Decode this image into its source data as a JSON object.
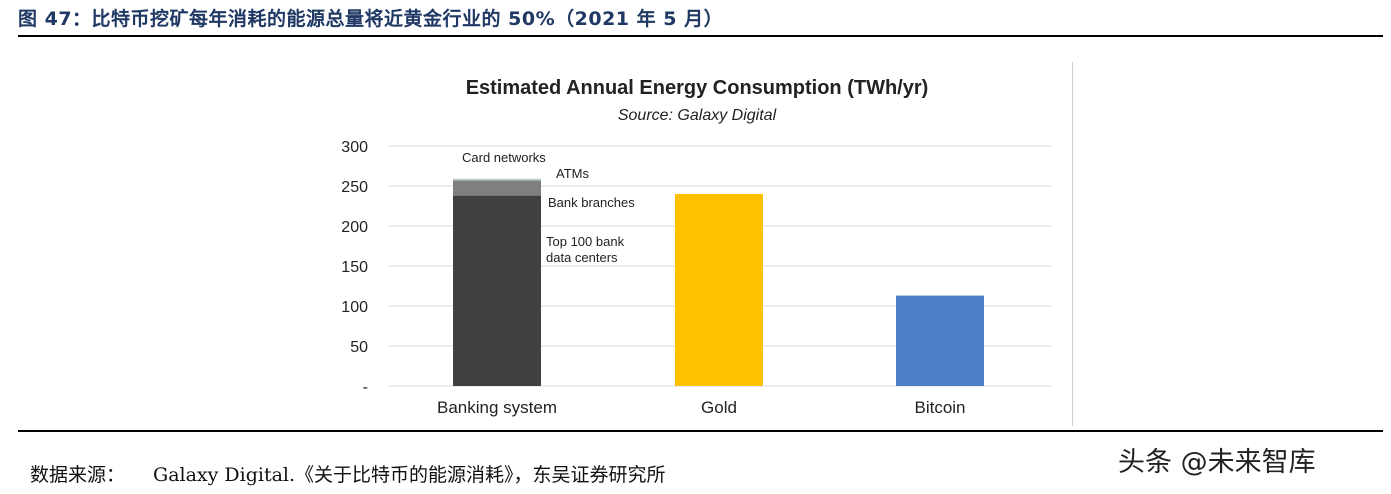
{
  "figure": {
    "title": "图 47：比特币挖矿每年消耗的能源总量将近黄金行业的 50%（2021 年 5 月）"
  },
  "footer": {
    "source_label": "数据来源：",
    "source_text": "Galaxy Digital.《关于比特币的能源消耗》，东吴证券研究所",
    "watermark": "头条 @未来智库"
  },
  "colors": {
    "title": "#1f3864",
    "top_100_bank_data_centers": "#404040",
    "bank_branches": "#7f7f7f",
    "atms": "#b8cfc8",
    "card_networks": "#e3f1ee",
    "gold": "#ffc000",
    "bitcoin": "#4a7ec7",
    "grid": "#d9d9d9"
  },
  "chart_data": {
    "type": "bar",
    "title": "Estimated Annual Energy Consumption (TWh/yr)",
    "subtitle": "Source: Galaxy Digital",
    "xlabel": "",
    "ylabel": "",
    "ylim": [
      0,
      300
    ],
    "yticks": [
      0,
      50,
      100,
      150,
      200,
      250,
      300
    ],
    "ytick_labels": [
      "-",
      "50",
      "100",
      "150",
      "200",
      "250",
      "300"
    ],
    "grid": true,
    "categories": [
      "Banking system",
      "Gold",
      "Bitcoin"
    ],
    "stacks": [
      {
        "category": "Banking system",
        "segments": [
          {
            "name": "Top 100 bank data centers",
            "label": "Top 100 bank\ndata centers",
            "value": 238,
            "color_key": "top_100_bank_data_centers"
          },
          {
            "name": "Bank branches",
            "label": "Bank branches",
            "value": 19,
            "color_key": "bank_branches"
          },
          {
            "name": "ATMs",
            "label": "ATMs",
            "value": 2,
            "color_key": "atms"
          },
          {
            "name": "Card networks",
            "label": "Card networks",
            "value": 1,
            "color_key": "card_networks"
          }
        ]
      },
      {
        "category": "Gold",
        "segments": [
          {
            "name": "Gold",
            "value": 240,
            "color_key": "gold"
          }
        ]
      },
      {
        "category": "Bitcoin",
        "segments": [
          {
            "name": "Bitcoin",
            "value": 113,
            "color_key": "bitcoin"
          }
        ]
      }
    ]
  }
}
